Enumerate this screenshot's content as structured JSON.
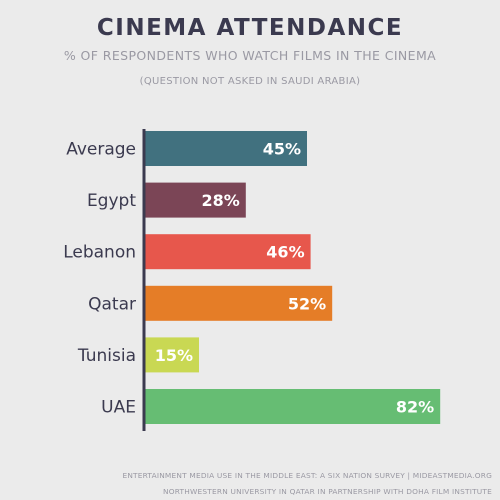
{
  "chart_data": {
    "type": "bar",
    "orientation": "horizontal",
    "title": "CINEMA ATTENDANCE",
    "subtitle": "% OF RESPONDENTS WHO WATCH FILMS IN THE CINEMA",
    "note": "(QUESTION NOT ASKED IN SAUDI ARABIA)",
    "categories": [
      "Average",
      "Egypt",
      "Lebanon",
      "Qatar",
      "Tunisia",
      "UAE"
    ],
    "values": [
      45,
      28,
      46,
      52,
      15,
      82
    ],
    "data_labels": [
      "45%",
      "28%",
      "46%",
      "52%",
      "15%",
      "82%"
    ],
    "colors": [
      "#41717f",
      "#7b4556",
      "#e7574c",
      "#e57d27",
      "#c9d853",
      "#66bd73"
    ],
    "xlim": [
      0,
      100
    ],
    "grid": false
  },
  "footer": {
    "line1": "ENTERTAINMENT MEDIA USE IN THE MIDDLE EAST: A SIX NATION SURVEY | MIDEASTMEDIA.ORG",
    "line2": "NORTHWESTERN UNIVERSITY IN QATAR IN PARTNERSHIP WITH DOHA FILM INSTITUTE"
  },
  "colors": {
    "background": "#ebebeb",
    "title": "#3b3a4f",
    "subtitle": "#9a99a3",
    "axis": "#3b3a4f",
    "label": "#3b3a4f"
  }
}
